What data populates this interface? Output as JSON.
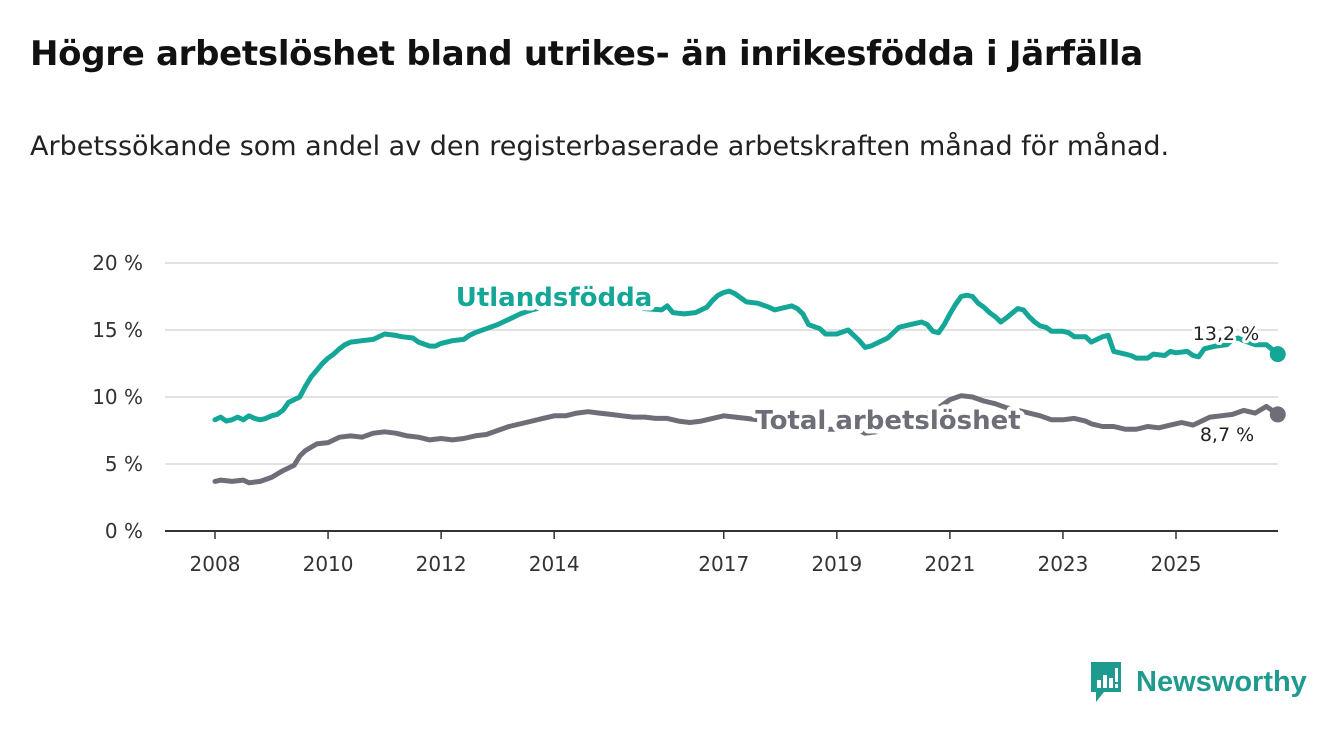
{
  "title": "Högre arbetslöshet bland utrikes- än inrikesfödda i Järfälla",
  "subtitle": "Arbetssökande som andel av den registerbaserade arbetskraften månad för månad.",
  "brand": {
    "name": "Newsworthy",
    "icon": "newsworthy-logo-icon"
  },
  "colors": {
    "utlandsfodda": "#14a697",
    "total": "#6e6e78",
    "grid": "#d9d9d9",
    "axis": "#333333"
  },
  "chart_data": {
    "type": "line",
    "ylim": [
      0,
      20
    ],
    "xlim": [
      2008,
      2026.2
    ],
    "yticks": [
      0,
      5,
      10,
      15,
      20
    ],
    "ytick_labels": [
      "0 %",
      "5 %",
      "10 %",
      "15 %",
      "20 %"
    ],
    "xticks": [
      2008,
      2010,
      2012,
      2014,
      2017,
      2019,
      2021,
      2023,
      2025
    ],
    "xtick_labels": [
      "2008",
      "2010",
      "2012",
      "2014",
      "2017",
      "2019",
      "2021",
      "2023",
      "2025"
    ],
    "grid": true,
    "series": [
      {
        "name": "Utlandsfödda",
        "label": "Utlandsfödda",
        "end_label": "13,2 %",
        "points": [
          [
            2008.0,
            8.3
          ],
          [
            2008.1,
            8.5
          ],
          [
            2008.2,
            8.2
          ],
          [
            2008.3,
            8.3
          ],
          [
            2008.4,
            8.5
          ],
          [
            2008.5,
            8.3
          ],
          [
            2008.6,
            8.6
          ],
          [
            2008.7,
            8.4
          ],
          [
            2008.8,
            8.3
          ],
          [
            2008.9,
            8.4
          ],
          [
            2009.0,
            8.6
          ],
          [
            2009.1,
            8.7
          ],
          [
            2009.2,
            9.0
          ],
          [
            2009.3,
            9.6
          ],
          [
            2009.5,
            10.0
          ],
          [
            2009.6,
            10.8
          ],
          [
            2009.7,
            11.5
          ],
          [
            2009.8,
            12.0
          ],
          [
            2009.9,
            12.5
          ],
          [
            2010.0,
            12.9
          ],
          [
            2010.1,
            13.2
          ],
          [
            2010.2,
            13.6
          ],
          [
            2010.3,
            13.9
          ],
          [
            2010.4,
            14.1
          ],
          [
            2010.6,
            14.2
          ],
          [
            2010.8,
            14.3
          ],
          [
            2010.9,
            14.5
          ],
          [
            2011.0,
            14.7
          ],
          [
            2011.2,
            14.6
          ],
          [
            2011.3,
            14.5
          ],
          [
            2011.5,
            14.4
          ],
          [
            2011.6,
            14.1
          ],
          [
            2011.8,
            13.8
          ],
          [
            2011.9,
            13.8
          ],
          [
            2012.0,
            14.0
          ],
          [
            2012.2,
            14.2
          ],
          [
            2012.4,
            14.3
          ],
          [
            2012.5,
            14.6
          ],
          [
            2012.6,
            14.8
          ],
          [
            2012.8,
            15.1
          ],
          [
            2013.0,
            15.4
          ],
          [
            2013.2,
            15.8
          ],
          [
            2013.4,
            16.2
          ],
          [
            2013.6,
            16.5
          ],
          [
            2013.8,
            16.7
          ],
          [
            2014.0,
            16.9
          ],
          [
            2014.3,
            17.0
          ],
          [
            2014.6,
            17.1
          ],
          [
            2015.0,
            17.0
          ],
          [
            2015.3,
            16.8
          ],
          [
            2015.6,
            16.6
          ],
          [
            2015.9,
            16.5
          ],
          [
            2016.0,
            16.8
          ],
          [
            2016.1,
            16.3
          ],
          [
            2016.3,
            16.2
          ],
          [
            2016.5,
            16.3
          ],
          [
            2016.7,
            16.7
          ],
          [
            2016.8,
            17.2
          ],
          [
            2016.9,
            17.6
          ],
          [
            2017.0,
            17.8
          ],
          [
            2017.1,
            17.9
          ],
          [
            2017.2,
            17.7
          ],
          [
            2017.3,
            17.4
          ],
          [
            2017.4,
            17.1
          ],
          [
            2017.6,
            17.0
          ],
          [
            2017.8,
            16.7
          ],
          [
            2017.9,
            16.5
          ],
          [
            2018.0,
            16.6
          ],
          [
            2018.2,
            16.8
          ],
          [
            2018.3,
            16.6
          ],
          [
            2018.4,
            16.2
          ],
          [
            2018.5,
            15.4
          ],
          [
            2018.7,
            15.1
          ],
          [
            2018.8,
            14.7
          ],
          [
            2019.0,
            14.7
          ],
          [
            2019.2,
            15.0
          ],
          [
            2019.3,
            14.6
          ],
          [
            2019.4,
            14.2
          ],
          [
            2019.5,
            13.7
          ],
          [
            2019.6,
            13.8
          ],
          [
            2019.7,
            14.0
          ],
          [
            2019.8,
            14.2
          ],
          [
            2019.9,
            14.4
          ],
          [
            2020.0,
            14.8
          ],
          [
            2020.1,
            15.2
          ],
          [
            2020.3,
            15.4
          ],
          [
            2020.4,
            15.5
          ],
          [
            2020.5,
            15.6
          ],
          [
            2020.6,
            15.4
          ],
          [
            2020.7,
            14.9
          ],
          [
            2020.8,
            14.8
          ],
          [
            2020.9,
            15.4
          ],
          [
            2021.0,
            16.2
          ],
          [
            2021.1,
            16.9
          ],
          [
            2021.2,
            17.5
          ],
          [
            2021.3,
            17.6
          ],
          [
            2021.4,
            17.5
          ],
          [
            2021.5,
            17.0
          ],
          [
            2021.6,
            16.7
          ],
          [
            2021.7,
            16.3
          ],
          [
            2021.8,
            16.0
          ],
          [
            2021.9,
            15.6
          ],
          [
            2022.0,
            15.9
          ],
          [
            2022.2,
            16.6
          ],
          [
            2022.3,
            16.5
          ],
          [
            2022.4,
            16.0
          ],
          [
            2022.5,
            15.6
          ],
          [
            2022.6,
            15.3
          ],
          [
            2022.7,
            15.2
          ],
          [
            2022.8,
            14.9
          ],
          [
            2023.0,
            14.9
          ],
          [
            2023.1,
            14.8
          ],
          [
            2023.2,
            14.5
          ],
          [
            2023.4,
            14.5
          ],
          [
            2023.5,
            14.1
          ],
          [
            2023.7,
            14.5
          ],
          [
            2023.8,
            14.6
          ],
          [
            2023.9,
            13.4
          ],
          [
            2024.1,
            13.2
          ],
          [
            2024.2,
            13.1
          ],
          [
            2024.3,
            12.9
          ],
          [
            2024.5,
            12.9
          ],
          [
            2024.6,
            13.2
          ],
          [
            2024.8,
            13.1
          ],
          [
            2024.9,
            13.4
          ],
          [
            2025.0,
            13.3
          ],
          [
            2025.2,
            13.4
          ],
          [
            2025.3,
            13.1
          ],
          [
            2025.4,
            13.0
          ],
          [
            2025.5,
            13.6
          ],
          [
            2025.7,
            13.8
          ],
          [
            2025.9,
            13.9
          ],
          [
            2026.0,
            14.3
          ],
          [
            2026.1,
            14.4
          ],
          [
            2026.2,
            14.2
          ],
          [
            2026.4,
            13.9
          ],
          [
            2026.6,
            13.9
          ],
          [
            2026.8,
            13.2
          ]
        ]
      },
      {
        "name": "Total arbetslöshet",
        "label": "Total arbetslöshet",
        "end_label": "8,7 %",
        "points": [
          [
            2008.0,
            3.7
          ],
          [
            2008.1,
            3.8
          ],
          [
            2008.3,
            3.7
          ],
          [
            2008.5,
            3.8
          ],
          [
            2008.6,
            3.6
          ],
          [
            2008.8,
            3.7
          ],
          [
            2009.0,
            4.0
          ],
          [
            2009.2,
            4.5
          ],
          [
            2009.3,
            4.7
          ],
          [
            2009.4,
            4.9
          ],
          [
            2009.5,
            5.6
          ],
          [
            2009.6,
            6.0
          ],
          [
            2009.8,
            6.5
          ],
          [
            2010.0,
            6.6
          ],
          [
            2010.2,
            7.0
          ],
          [
            2010.4,
            7.1
          ],
          [
            2010.6,
            7.0
          ],
          [
            2010.8,
            7.3
          ],
          [
            2011.0,
            7.4
          ],
          [
            2011.2,
            7.3
          ],
          [
            2011.4,
            7.1
          ],
          [
            2011.6,
            7.0
          ],
          [
            2011.8,
            6.8
          ],
          [
            2012.0,
            6.9
          ],
          [
            2012.2,
            6.8
          ],
          [
            2012.4,
            6.9
          ],
          [
            2012.6,
            7.1
          ],
          [
            2012.8,
            7.2
          ],
          [
            2013.0,
            7.5
          ],
          [
            2013.2,
            7.8
          ],
          [
            2013.5,
            8.1
          ],
          [
            2013.8,
            8.4
          ],
          [
            2014.0,
            8.6
          ],
          [
            2014.2,
            8.6
          ],
          [
            2014.4,
            8.8
          ],
          [
            2014.6,
            8.9
          ],
          [
            2014.8,
            8.8
          ],
          [
            2015.0,
            8.7
          ],
          [
            2015.2,
            8.6
          ],
          [
            2015.4,
            8.5
          ],
          [
            2015.6,
            8.5
          ],
          [
            2015.8,
            8.4
          ],
          [
            2016.0,
            8.4
          ],
          [
            2016.2,
            8.2
          ],
          [
            2016.4,
            8.1
          ],
          [
            2016.6,
            8.2
          ],
          [
            2016.8,
            8.4
          ],
          [
            2017.0,
            8.6
          ],
          [
            2017.2,
            8.5
          ],
          [
            2017.4,
            8.4
          ],
          [
            2017.6,
            8.3
          ],
          [
            2017.8,
            8.2
          ],
          [
            2018.0,
            8.4
          ],
          [
            2018.3,
            8.5
          ],
          [
            2018.6,
            8.3
          ],
          [
            2018.8,
            7.6
          ],
          [
            2019.0,
            7.6
          ],
          [
            2019.2,
            7.8
          ],
          [
            2019.4,
            7.5
          ],
          [
            2019.5,
            7.3
          ],
          [
            2019.7,
            7.4
          ],
          [
            2019.9,
            7.8
          ],
          [
            2020.2,
            8.2
          ],
          [
            2020.5,
            8.6
          ],
          [
            2020.8,
            9.2
          ],
          [
            2021.0,
            9.8
          ],
          [
            2021.2,
            10.1
          ],
          [
            2021.4,
            10.0
          ],
          [
            2021.6,
            9.7
          ],
          [
            2021.8,
            9.5
          ],
          [
            2022.0,
            9.2
          ],
          [
            2022.3,
            8.9
          ],
          [
            2022.6,
            8.6
          ],
          [
            2022.8,
            8.3
          ],
          [
            2023.0,
            8.3
          ],
          [
            2023.2,
            8.4
          ],
          [
            2023.4,
            8.2
          ],
          [
            2023.5,
            8.0
          ],
          [
            2023.7,
            7.8
          ],
          [
            2023.9,
            7.8
          ],
          [
            2024.1,
            7.6
          ],
          [
            2024.3,
            7.6
          ],
          [
            2024.5,
            7.8
          ],
          [
            2024.7,
            7.7
          ],
          [
            2024.9,
            7.9
          ],
          [
            2025.1,
            8.1
          ],
          [
            2025.3,
            7.9
          ],
          [
            2025.4,
            8.1
          ],
          [
            2025.6,
            8.5
          ],
          [
            2025.8,
            8.6
          ],
          [
            2026.0,
            8.7
          ],
          [
            2026.2,
            9.0
          ],
          [
            2026.4,
            8.8
          ],
          [
            2026.6,
            9.3
          ],
          [
            2026.8,
            8.7
          ]
        ]
      }
    ]
  }
}
